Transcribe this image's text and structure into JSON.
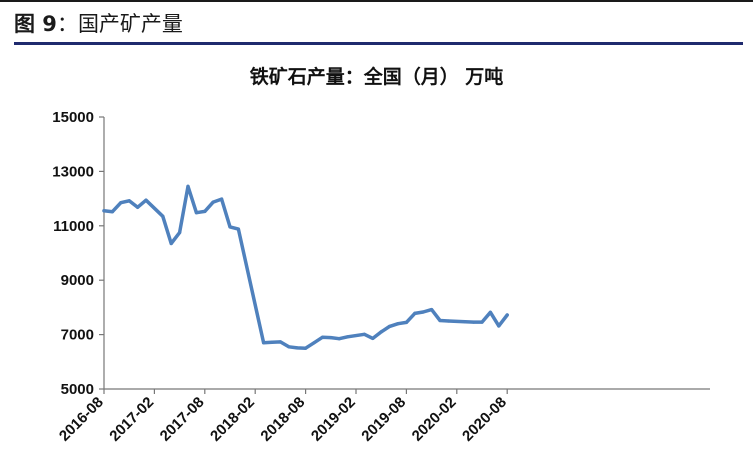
{
  "header": {
    "figure_label": "图 9",
    "colon": "：",
    "figure_title": "国产矿产量"
  },
  "chart_data": {
    "type": "line",
    "title": "铁矿石产量：全国（月） 万吨",
    "xlabel": "",
    "ylabel": "",
    "ylim": [
      5000,
      15000
    ],
    "yticks": [
      "15000",
      "13000",
      "11000",
      "9000",
      "7000",
      "5000"
    ],
    "xticks": [
      "2016-08",
      "2017-02",
      "2017-08",
      "2018-02",
      "2018-08",
      "2019-02",
      "2019-08",
      "2020-02",
      "2020-08"
    ],
    "grid": false,
    "legend": "none",
    "color": "#4f81bd",
    "series": [
      {
        "x": [
          "2016-08",
          "2016-09",
          "2016-10",
          "2016-11",
          "2016-12",
          "2017-01",
          "2017-03",
          "2017-04",
          "2017-05",
          "2017-06",
          "2017-07",
          "2017-08",
          "2017-09",
          "2017-10",
          "2017-11",
          "2017-12",
          "2018-03",
          "2018-04",
          "2018-05",
          "2018-06",
          "2018-07",
          "2018-08",
          "2018-09",
          "2018-10",
          "2018-11",
          "2018-12",
          "2019-01",
          "2019-03",
          "2019-04",
          "2019-05",
          "2019-06",
          "2019-07",
          "2019-08",
          "2019-09",
          "2019-10",
          "2019-11",
          "2019-12",
          "2020-01",
          "2020-03",
          "2020-04",
          "2020-05",
          "2020-06",
          "2020-07",
          "2020-08"
        ],
        "values": [
          11550,
          11520,
          11850,
          11920,
          11680,
          11940,
          11350,
          10350,
          10750,
          12450,
          11480,
          11530,
          11870,
          11980,
          10960,
          10880,
          6700,
          6720,
          6730,
          6550,
          6510,
          6500,
          6700,
          6900,
          6890,
          6850,
          6920,
          7010,
          6860,
          7100,
          7300,
          7400,
          7450,
          7780,
          7830,
          7920,
          7520,
          7500,
          7470,
          7460,
          7460,
          7820,
          7320,
          7720
        ]
      }
    ]
  }
}
